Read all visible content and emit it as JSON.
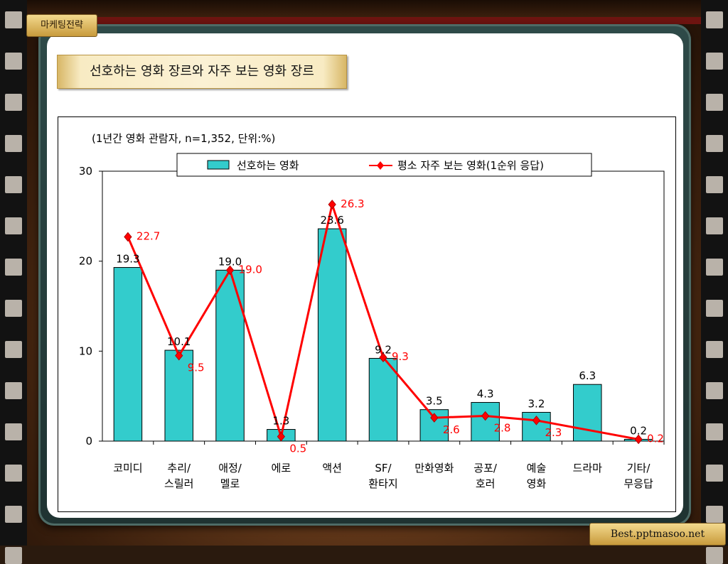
{
  "slide": {
    "section_tag": "마케팅전략",
    "title": "선호하는 영화 장르와 자주 보는 영화 장르",
    "footer": "Best.pptmasoo.net",
    "colors": {
      "bar": "#33cccc",
      "line": "#ff0000",
      "title_bg": "#f8ebc3"
    }
  },
  "chart_data": {
    "type": "bar",
    "subtitle": "(1년간 영화 관람자, n=1,352, 단위:%)",
    "categories": [
      [
        "코미디"
      ],
      [
        "추리/",
        "스릴러"
      ],
      [
        "애정/",
        "멜로"
      ],
      [
        "에로"
      ],
      [
        "액션"
      ],
      [
        "SF/",
        "환타지"
      ],
      [
        "만화영화"
      ],
      [
        "공포/",
        "호러"
      ],
      [
        "예술",
        "영화"
      ],
      [
        "드라마"
      ],
      [
        "기타/",
        "무응답"
      ]
    ],
    "ylim": [
      0,
      30
    ],
    "yticks": [
      0,
      10,
      20,
      30
    ],
    "legend_position": "top",
    "series": [
      {
        "name": "선호하는 영화",
        "kind": "bar",
        "color": "#33cccc",
        "values": [
          19.3,
          10.1,
          19.0,
          1.3,
          23.6,
          9.2,
          3.5,
          4.3,
          3.2,
          6.3,
          0.2
        ],
        "labels": [
          "19.3",
          "10.1",
          "19.0",
          "1.3",
          "23.6",
          "9.2",
          "3.5",
          "4.3",
          "3.2",
          "6.3",
          "0.2"
        ]
      },
      {
        "name": "평소 자주 보는 영화(1순위 응답)",
        "kind": "line",
        "color": "#ff0000",
        "values": [
          22.7,
          9.5,
          19.0,
          0.5,
          26.3,
          9.3,
          2.6,
          2.8,
          2.3,
          null,
          0.2
        ],
        "labels": [
          "22.7",
          "9.5",
          "19.0",
          "0.5",
          "26.3",
          "9.3",
          "2.6",
          "2.8",
          "2.3",
          "",
          "0.2"
        ]
      }
    ]
  }
}
